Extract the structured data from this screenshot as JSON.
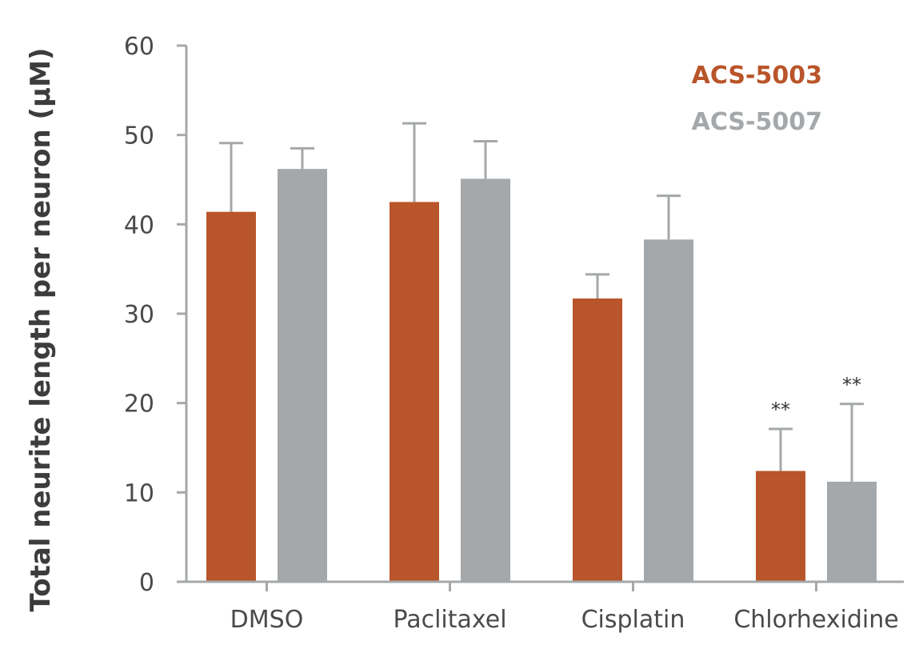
{
  "chart_data": {
    "type": "bar",
    "title": "",
    "xlabel": "",
    "ylabel": "Total neurite length per neuron (μM)",
    "ylim": [
      0,
      60
    ],
    "yticks": [
      0,
      10,
      20,
      30,
      40,
      50,
      60
    ],
    "grid": false,
    "legend_position": "top-right",
    "categories": [
      "DMSO",
      "Paclitaxel",
      "Cisplatin",
      "Chlorhexidine"
    ],
    "series": [
      {
        "name": "ACS-5003",
        "color": "#b9552a",
        "values": [
          41.4,
          42.5,
          31.7,
          12.4
        ],
        "errors": [
          7.7,
          8.8,
          2.7,
          4.7
        ],
        "annotations": [
          "",
          "",
          "",
          "**"
        ]
      },
      {
        "name": "ACS-5007",
        "color": "#a5a8aa",
        "values": [
          46.2,
          45.1,
          38.3,
          11.2
        ],
        "errors": [
          2.3,
          4.2,
          4.9,
          8.7
        ],
        "annotations": [
          "",
          "",
          "",
          "**"
        ]
      }
    ],
    "axis_color": "#a5a8aa"
  }
}
